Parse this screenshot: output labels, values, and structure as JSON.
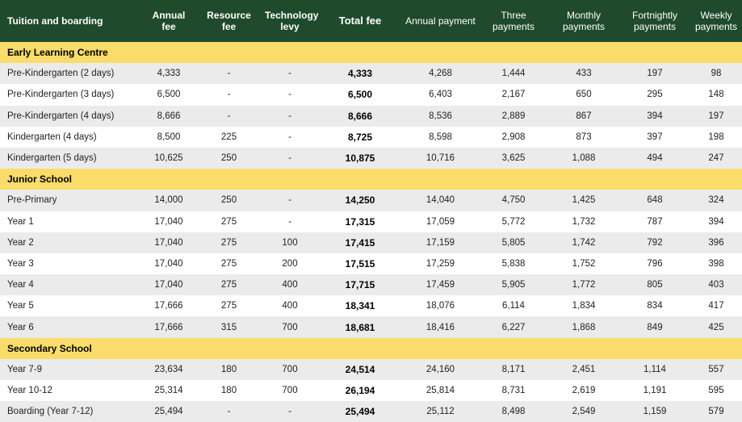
{
  "headers": [
    "Tuition and boarding",
    "Annual fee",
    "Resource fee",
    "Technology levy",
    "Total fee",
    "Annual payment",
    "Three payments",
    "Monthly payments",
    "Fortnightly payments",
    "Weekly payments"
  ],
  "sections": [
    {
      "title": "Early Learning Centre",
      "rows": [
        [
          "Pre-Kindergarten (2 days)",
          "4,333",
          "-",
          "-",
          "4,333",
          "4,268",
          "1,444",
          "433",
          "197",
          "98"
        ],
        [
          "Pre-Kindergarten (3 days)",
          "6,500",
          "-",
          "-",
          "6,500",
          "6,403",
          "2,167",
          "650",
          "295",
          "148"
        ],
        [
          "Pre-Kindergarten (4 days)",
          "8,666",
          "-",
          "-",
          "8,666",
          "8,536",
          "2,889",
          "867",
          "394",
          "197"
        ],
        [
          "Kindergarten (4 days)",
          "8,500",
          "225",
          "-",
          "8,725",
          "8,598",
          "2,908",
          "873",
          "397",
          "198"
        ],
        [
          "Kindergarten (5 days)",
          "10,625",
          "250",
          "-",
          "10,875",
          "10,716",
          "3,625",
          "1,088",
          "494",
          "247"
        ]
      ]
    },
    {
      "title": "Junior School",
      "rows": [
        [
          "Pre-Primary",
          "14,000",
          "250",
          "-",
          "14,250",
          "14,040",
          "4,750",
          "1,425",
          "648",
          "324"
        ],
        [
          "Year 1",
          "17,040",
          "275",
          "-",
          "17,315",
          "17,059",
          "5,772",
          "1,732",
          "787",
          "394"
        ],
        [
          "Year 2",
          "17,040",
          "275",
          "100",
          "17,415",
          "17,159",
          "5,805",
          "1,742",
          "792",
          "396"
        ],
        [
          "Year 3",
          "17,040",
          "275",
          "200",
          "17,515",
          "17,259",
          "5,838",
          "1,752",
          "796",
          "398"
        ],
        [
          "Year 4",
          "17,040",
          "275",
          "400",
          "17,715",
          "17,459",
          "5,905",
          "1,772",
          "805",
          "403"
        ],
        [
          "Year 5",
          "17,666",
          "275",
          "400",
          "18,341",
          "18,076",
          "6,114",
          "1,834",
          "834",
          "417"
        ],
        [
          "Year 6",
          "17,666",
          "315",
          "700",
          "18,681",
          "18,416",
          "6,227",
          "1,868",
          "849",
          "425"
        ]
      ]
    },
    {
      "title": "Secondary School",
      "rows": [
        [
          "Year 7-9",
          "23,634",
          "180",
          "700",
          "24,514",
          "24,160",
          "8,171",
          "2,451",
          "1,114",
          "557"
        ],
        [
          "Year 10-12",
          "25,314",
          "180",
          "700",
          "26,194",
          "25,814",
          "8,731",
          "2,619",
          "1,191",
          "595"
        ],
        [
          "Boarding (Year 7-12)",
          "25,494",
          "-",
          "-",
          "25,494",
          "25,112",
          "8,498",
          "2,549",
          "1,159",
          "579"
        ]
      ]
    }
  ]
}
